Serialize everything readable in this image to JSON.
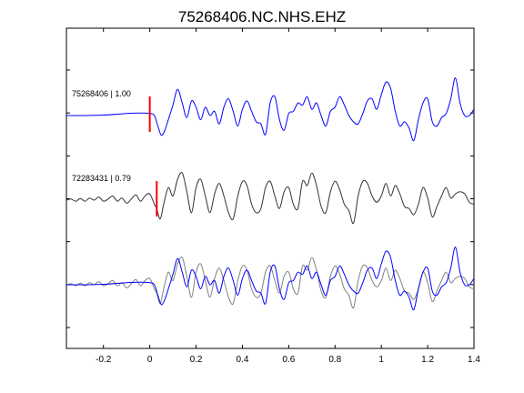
{
  "chart_data": {
    "type": "line",
    "title": "75268406.NC.NHS.EHZ",
    "xlabel": "",
    "ylabel": "",
    "xlim": [
      -0.36,
      1.4
    ],
    "x_ticks": [
      -0.2,
      0,
      0.2,
      0.4,
      0.6,
      0.8,
      1,
      1.2,
      1.4
    ],
    "x_tick_labels": [
      "-0.2",
      "0",
      "0.2",
      "0.4",
      "0.6",
      "0.8",
      "1",
      "1.2",
      "1.4"
    ],
    "y_ticks_count": 7,
    "grid": false,
    "legend": "none",
    "series": [
      {
        "label": "75268406 | 1.00",
        "color": "#0000ff",
        "panel": "top",
        "pick_time": 0.0,
        "pick_color": "#ff0000",
        "x": [
          -0.36,
          -0.3,
          -0.2,
          -0.1,
          -0.04,
          0.0,
          0.02,
          0.035,
          0.05,
          0.065,
          0.08,
          0.1,
          0.12,
          0.14,
          0.16,
          0.18,
          0.2,
          0.22,
          0.24,
          0.26,
          0.28,
          0.3,
          0.32,
          0.34,
          0.36,
          0.38,
          0.4,
          0.42,
          0.44,
          0.46,
          0.48,
          0.5,
          0.52,
          0.54,
          0.56,
          0.58,
          0.6,
          0.62,
          0.64,
          0.66,
          0.68,
          0.7,
          0.72,
          0.74,
          0.76,
          0.78,
          0.8,
          0.82,
          0.84,
          0.86,
          0.88,
          0.9,
          0.92,
          0.94,
          0.96,
          0.98,
          1.0,
          1.02,
          1.04,
          1.06,
          1.08,
          1.1,
          1.12,
          1.14,
          1.16,
          1.18,
          1.2,
          1.22,
          1.24,
          1.26,
          1.28,
          1.3,
          1.32,
          1.34,
          1.36,
          1.38,
          1.4
        ],
        "y": [
          0.0,
          0.0,
          0.02,
          0.1,
          0.12,
          0.1,
          0.0,
          -0.5,
          -0.95,
          -0.7,
          -0.2,
          0.5,
          1.25,
          0.6,
          -0.1,
          0.7,
          0.4,
          -0.2,
          0.4,
          0.0,
          0.2,
          -0.4,
          0.4,
          0.8,
          0.2,
          -0.5,
          0.3,
          0.7,
          0.2,
          -0.3,
          -0.4,
          -0.9,
          0.6,
          0.9,
          -0.2,
          -0.7,
          0.1,
          0.2,
          0.6,
          0.5,
          0.9,
          0.3,
          0.6,
          0.0,
          -0.5,
          0.2,
          0.4,
          0.9,
          0.5,
          0.0,
          -0.3,
          -0.4,
          0.1,
          0.7,
          0.8,
          0.3,
          1.0,
          1.6,
          1.3,
          0.2,
          -0.5,
          -0.3,
          -0.6,
          -1.2,
          -0.2,
          0.6,
          0.8,
          -0.3,
          -0.5,
          -0.1,
          0.1,
          0.8,
          1.8,
          0.6,
          0.0,
          0.0,
          0.3
        ]
      },
      {
        "label": "72283431 | 0.79",
        "color": "#333333",
        "panel": "middle",
        "pick_time": 0.03,
        "pick_color": "#ff0000",
        "x": [
          -0.36,
          -0.34,
          -0.32,
          -0.3,
          -0.28,
          -0.26,
          -0.24,
          -0.22,
          -0.2,
          -0.18,
          -0.16,
          -0.14,
          -0.12,
          -0.1,
          -0.08,
          -0.06,
          -0.04,
          -0.02,
          0.0,
          0.02,
          0.03,
          0.045,
          0.06,
          0.08,
          0.1,
          0.12,
          0.14,
          0.16,
          0.18,
          0.2,
          0.22,
          0.24,
          0.26,
          0.28,
          0.3,
          0.32,
          0.34,
          0.36,
          0.38,
          0.4,
          0.42,
          0.44,
          0.46,
          0.48,
          0.5,
          0.52,
          0.54,
          0.56,
          0.58,
          0.6,
          0.62,
          0.64,
          0.66,
          0.68,
          0.7,
          0.72,
          0.74,
          0.76,
          0.78,
          0.8,
          0.82,
          0.84,
          0.86,
          0.88,
          0.9,
          0.92,
          0.94,
          0.96,
          0.98,
          1.0,
          1.02,
          1.04,
          1.06,
          1.08,
          1.1,
          1.12,
          1.14,
          1.16,
          1.18,
          1.2,
          1.22,
          1.24,
          1.26,
          1.28,
          1.3,
          1.32,
          1.34,
          1.36,
          1.38,
          1.4
        ],
        "y": [
          0.0,
          0.05,
          -0.05,
          0.08,
          -0.05,
          0.1,
          0.0,
          0.15,
          -0.05,
          0.05,
          0.2,
          -0.05,
          0.1,
          -0.15,
          0.05,
          0.25,
          -0.05,
          0.2,
          0.3,
          -0.2,
          -0.4,
          -0.9,
          -0.2,
          0.6,
          0.2,
          1.0,
          1.3,
          0.4,
          -0.6,
          0.6,
          1.0,
          0.2,
          -0.6,
          0.3,
          0.8,
          0.2,
          -0.6,
          -0.9,
          0.2,
          0.9,
          0.7,
          -0.2,
          -0.6,
          -0.4,
          0.6,
          0.9,
          0.2,
          -0.4,
          0.4,
          0.6,
          -0.2,
          -0.4,
          0.9,
          0.7,
          1.3,
          0.7,
          -0.3,
          -0.6,
          0.4,
          0.9,
          0.5,
          -0.2,
          -0.5,
          -1.1,
          0.2,
          0.9,
          0.8,
          0.2,
          -0.1,
          0.2,
          0.8,
          0.2,
          0.7,
          0.3,
          -0.3,
          -0.4,
          -0.7,
          -0.2,
          0.6,
          0.1,
          -0.8,
          -0.3,
          0.2,
          0.6,
          0.1,
          0.3,
          0.4,
          0.3,
          -0.1,
          -0.2
        ]
      },
      {
        "label": "",
        "color": "#0000ff",
        "panel": "bottom",
        "pick_time": null,
        "x": [
          -0.36,
          -0.3,
          -0.2,
          -0.1,
          -0.04,
          0.0,
          0.02,
          0.035,
          0.05,
          0.065,
          0.08,
          0.1,
          0.12,
          0.14,
          0.16,
          0.18,
          0.2,
          0.22,
          0.24,
          0.26,
          0.28,
          0.3,
          0.32,
          0.34,
          0.36,
          0.38,
          0.4,
          0.42,
          0.44,
          0.46,
          0.48,
          0.5,
          0.52,
          0.54,
          0.56,
          0.58,
          0.6,
          0.62,
          0.64,
          0.66,
          0.68,
          0.7,
          0.72,
          0.74,
          0.76,
          0.78,
          0.8,
          0.82,
          0.84,
          0.86,
          0.88,
          0.9,
          0.92,
          0.94,
          0.96,
          0.98,
          1.0,
          1.02,
          1.04,
          1.06,
          1.08,
          1.1,
          1.12,
          1.14,
          1.16,
          1.18,
          1.2,
          1.22,
          1.24,
          1.26,
          1.28,
          1.3,
          1.32,
          1.34,
          1.36,
          1.38,
          1.4
        ],
        "y": [
          0.0,
          0.0,
          0.02,
          0.1,
          0.12,
          0.1,
          0.0,
          -0.5,
          -0.95,
          -0.7,
          -0.2,
          0.5,
          1.25,
          0.6,
          -0.1,
          0.7,
          0.4,
          -0.2,
          0.4,
          0.0,
          0.2,
          -0.4,
          0.4,
          0.8,
          0.2,
          -0.5,
          0.3,
          0.7,
          0.2,
          -0.3,
          -0.4,
          -0.9,
          0.6,
          0.9,
          -0.2,
          -0.7,
          0.1,
          0.2,
          0.6,
          0.5,
          0.9,
          0.3,
          0.6,
          0.0,
          -0.5,
          0.2,
          0.4,
          0.9,
          0.5,
          0.0,
          -0.3,
          -0.4,
          0.1,
          0.7,
          0.8,
          0.3,
          1.0,
          1.6,
          1.3,
          0.2,
          -0.5,
          -0.3,
          -0.6,
          -1.2,
          -0.2,
          0.6,
          0.8,
          -0.3,
          -0.5,
          -0.1,
          0.1,
          0.8,
          1.8,
          0.6,
          0.0,
          0.0,
          0.3
        ]
      },
      {
        "label": "",
        "color": "#808080",
        "panel": "bottom",
        "pick_time": null,
        "x": [
          -0.36,
          -0.34,
          -0.32,
          -0.3,
          -0.28,
          -0.26,
          -0.24,
          -0.22,
          -0.2,
          -0.18,
          -0.16,
          -0.14,
          -0.12,
          -0.1,
          -0.08,
          -0.06,
          -0.04,
          -0.02,
          0.0,
          0.02,
          0.03,
          0.045,
          0.06,
          0.08,
          0.1,
          0.12,
          0.14,
          0.16,
          0.18,
          0.2,
          0.22,
          0.24,
          0.26,
          0.28,
          0.3,
          0.32,
          0.34,
          0.36,
          0.38,
          0.4,
          0.42,
          0.44,
          0.46,
          0.48,
          0.5,
          0.52,
          0.54,
          0.56,
          0.58,
          0.6,
          0.62,
          0.64,
          0.66,
          0.68,
          0.7,
          0.72,
          0.74,
          0.76,
          0.78,
          0.8,
          0.82,
          0.84,
          0.86,
          0.88,
          0.9,
          0.92,
          0.94,
          0.96,
          0.98,
          1.0,
          1.02,
          1.04,
          1.06,
          1.08,
          1.1,
          1.12,
          1.14,
          1.16,
          1.18,
          1.2,
          1.22,
          1.24,
          1.26,
          1.28,
          1.3,
          1.32,
          1.34,
          1.36,
          1.38,
          1.4
        ],
        "y": [
          0.0,
          0.05,
          -0.05,
          0.08,
          -0.05,
          0.1,
          0.0,
          0.15,
          -0.05,
          0.05,
          0.2,
          -0.05,
          0.1,
          -0.15,
          0.05,
          0.25,
          -0.05,
          0.2,
          0.3,
          -0.2,
          -0.4,
          -0.9,
          -0.2,
          0.6,
          0.2,
          1.0,
          1.3,
          0.4,
          -0.6,
          0.6,
          1.0,
          0.2,
          -0.6,
          0.3,
          0.8,
          0.2,
          -0.6,
          -0.9,
          0.2,
          0.9,
          0.7,
          -0.2,
          -0.6,
          -0.4,
          0.6,
          0.9,
          0.2,
          -0.4,
          0.4,
          0.6,
          -0.2,
          -0.4,
          0.9,
          0.7,
          1.3,
          0.7,
          -0.3,
          -0.6,
          0.4,
          0.9,
          0.5,
          -0.2,
          -0.5,
          -1.1,
          0.2,
          0.9,
          0.8,
          0.2,
          -0.1,
          0.2,
          0.8,
          0.2,
          0.7,
          0.3,
          -0.3,
          -0.4,
          -0.7,
          -0.2,
          0.6,
          0.1,
          -0.8,
          -0.3,
          0.2,
          0.6,
          0.1,
          0.3,
          0.4,
          0.3,
          -0.1,
          -0.2
        ]
      }
    ]
  }
}
